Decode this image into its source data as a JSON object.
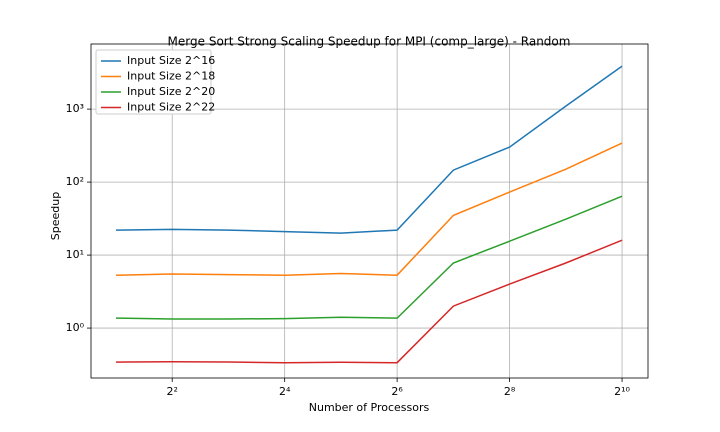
{
  "chart_data": {
    "type": "line",
    "title": "Merge Sort Strong Scaling Speedup for MPI (comp_large) - Random",
    "x_label": "Number of Processors",
    "y_label": "Speedup",
    "x": [
      2,
      4,
      8,
      16,
      32,
      64,
      128,
      256,
      512,
      1024
    ],
    "series": [
      {
        "name": "Input Size 2^16",
        "color": "#1f77b4",
        "values": [
          22,
          22.5,
          22,
          21,
          20,
          22,
          146,
          302,
          1100,
          3880
        ]
      },
      {
        "name": "Input Size 2^18",
        "color": "#ff7f0e",
        "values": [
          5.3,
          5.5,
          5.4,
          5.3,
          5.6,
          5.3,
          35,
          73,
          150,
          342
        ]
      },
      {
        "name": "Input Size 2^20",
        "color": "#2ca02c",
        "values": [
          1.37,
          1.33,
          1.33,
          1.35,
          1.41,
          1.37,
          7.8,
          15.5,
          31,
          64
        ]
      },
      {
        "name": "Input Size 2^22",
        "color": "#d62728",
        "values": [
          0.342,
          0.345,
          0.343,
          0.335,
          0.34,
          0.335,
          2.0,
          4.0,
          7.8,
          16
        ]
      }
    ],
    "xscale": "log2",
    "yscale": "log10",
    "xlim": [
      1.47,
      1410
    ],
    "ylim": [
      0.207,
      7800
    ],
    "xticks": [
      {
        "value": 4,
        "label": "2²"
      },
      {
        "value": 16,
        "label": "2⁴"
      },
      {
        "value": 64,
        "label": "2⁶"
      },
      {
        "value": 256,
        "label": "2⁸"
      },
      {
        "value": 1024,
        "label": "2¹⁰"
      }
    ],
    "yticks": [
      {
        "value": 1,
        "label": "10⁰"
      },
      {
        "value": 10,
        "label": "10¹"
      },
      {
        "value": 100,
        "label": "10²"
      },
      {
        "value": 1000,
        "label": "10³"
      }
    ],
    "grid": true,
    "legend": "upper-left"
  }
}
